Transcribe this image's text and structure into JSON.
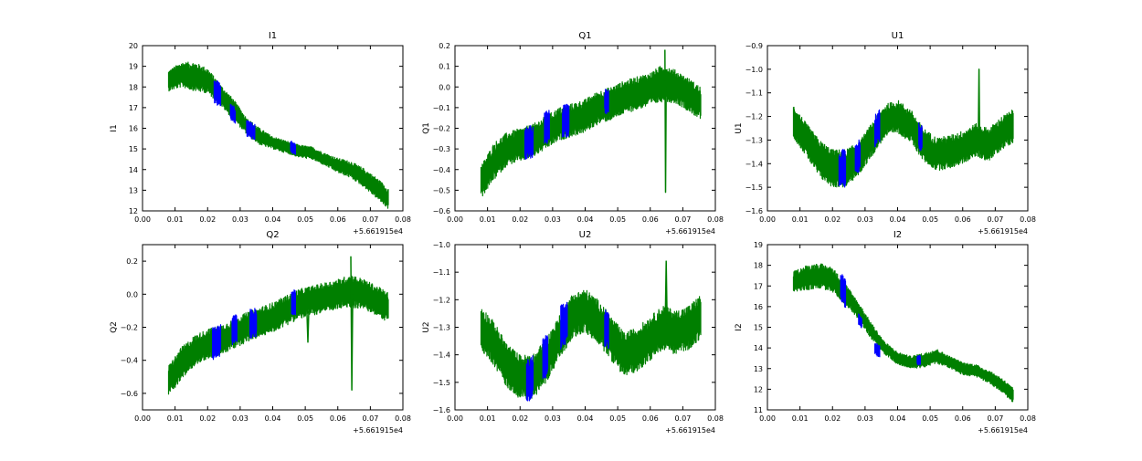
{
  "colors": {
    "green": "#007f00",
    "blue": "#0000ff"
  },
  "chart_data": [
    {
      "type": "line",
      "title": "I1",
      "xlabel": "",
      "ylabel": "I1",
      "xlim": [
        0.0,
        0.08
      ],
      "ylim": [
        12,
        20
      ],
      "xticks": [
        "0.00",
        "0.01",
        "0.02",
        "0.03",
        "0.04",
        "0.05",
        "0.06",
        "0.07",
        "0.08"
      ],
      "yticks": [
        "12",
        "13",
        "14",
        "15",
        "16",
        "17",
        "18",
        "19",
        "20"
      ],
      "x_offset_label": "+5.661915e4",
      "series": [
        {
          "color": "green",
          "x": [
            0.008,
            0.012,
            0.016,
            0.02,
            0.024,
            0.028,
            0.032,
            0.036,
            0.04,
            0.044,
            0.048,
            0.052,
            0.056,
            0.06,
            0.064,
            0.068,
            0.072,
            0.0755
          ],
          "y": [
            18.3,
            18.6,
            18.5,
            18.3,
            17.6,
            16.9,
            16.1,
            15.6,
            15.3,
            15.1,
            14.9,
            14.8,
            14.5,
            14.2,
            14.0,
            13.6,
            13.1,
            12.6
          ],
          "band": [
            0.5,
            0.6,
            0.7,
            0.6,
            0.5,
            0.5,
            0.4,
            0.4,
            0.3,
            0.3,
            0.3,
            0.3,
            0.3,
            0.35,
            0.4,
            0.45,
            0.5,
            0.5
          ]
        },
        {
          "color": "blue",
          "segments": [
            {
              "x": [
                0.022,
                0.024
              ],
              "y": [
                17.8,
                17.6
              ],
              "band": 0.6
            },
            {
              "x": [
                0.027,
                0.0285
              ],
              "y": [
                16.8,
                16.6
              ],
              "band": 0.4
            },
            {
              "x": [
                0.032,
                0.0345
              ],
              "y": [
                16.0,
                15.8
              ],
              "band": 0.4
            },
            {
              "x": [
                0.0455,
                0.047
              ],
              "y": [
                15.1,
                15.0
              ],
              "band": 0.3
            }
          ]
        }
      ]
    },
    {
      "type": "line",
      "title": "Q1",
      "xlabel": "",
      "ylabel": "Q1",
      "xlim": [
        0.0,
        0.08
      ],
      "ylim": [
        -0.6,
        0.2
      ],
      "xticks": [
        "0.00",
        "0.01",
        "0.02",
        "0.03",
        "0.04",
        "0.05",
        "0.06",
        "0.07",
        "0.08"
      ],
      "yticks": [
        "−0.6",
        "−0.5",
        "−0.4",
        "−0.3",
        "−0.2",
        "−0.1",
        "0.0",
        "0.1",
        "0.2"
      ],
      "x_offset_label": "+5.661915e4",
      "series": [
        {
          "color": "green",
          "x": [
            0.008,
            0.012,
            0.016,
            0.02,
            0.024,
            0.028,
            0.032,
            0.036,
            0.04,
            0.044,
            0.048,
            0.052,
            0.056,
            0.06,
            0.064,
            0.068,
            0.072,
            0.0755
          ],
          "y": [
            -0.46,
            -0.36,
            -0.3,
            -0.28,
            -0.26,
            -0.22,
            -0.18,
            -0.16,
            -0.14,
            -0.1,
            -0.08,
            -0.05,
            -0.03,
            -0.01,
            0.02,
            0.0,
            -0.04,
            -0.08
          ],
          "band": [
            0.08,
            0.09,
            0.08,
            0.08,
            0.08,
            0.08,
            0.08,
            0.08,
            0.08,
            0.08,
            0.08,
            0.08,
            0.08,
            0.08,
            0.09,
            0.08,
            0.08,
            0.08
          ]
        },
        {
          "color": "blue",
          "segments": [
            {
              "x": [
                0.0215,
                0.024
              ],
              "y": [
                -0.28,
                -0.26
              ],
              "band": 0.08
            },
            {
              "x": [
                0.0275,
                0.029
              ],
              "y": [
                -0.2,
                -0.19
              ],
              "band": 0.08
            },
            {
              "x": [
                0.033,
                0.035
              ],
              "y": [
                -0.17,
                -0.16
              ],
              "band": 0.08
            },
            {
              "x": [
                0.046,
                0.0472
              ],
              "y": [
                -0.07,
                -0.07
              ],
              "band": 0.06
            }
          ]
        },
        {
          "color": "green",
          "spike": true,
          "x": [
            0.0645,
            0.0647,
            0.0649
          ],
          "y": [
            0.18,
            -0.51,
            0.0
          ]
        }
      ]
    },
    {
      "type": "line",
      "title": "U1",
      "xlabel": "",
      "ylabel": "U1",
      "xlim": [
        0.0,
        0.08
      ],
      "ylim": [
        -1.6,
        -0.9
      ],
      "xticks": [
        "0.00",
        "0.01",
        "0.02",
        "0.03",
        "0.04",
        "0.05",
        "0.06",
        "0.07",
        "0.08"
      ],
      "yticks": [
        "−1.6",
        "−1.5",
        "−1.4",
        "−1.3",
        "−1.2",
        "−1.1",
        "−1.0",
        "−0.9"
      ],
      "x_offset_label": "+5.661915e4",
      "series": [
        {
          "color": "green",
          "x": [
            0.008,
            0.012,
            0.016,
            0.02,
            0.024,
            0.028,
            0.032,
            0.036,
            0.04,
            0.044,
            0.048,
            0.052,
            0.056,
            0.06,
            0.064,
            0.068,
            0.072,
            0.0755
          ],
          "y": [
            -1.22,
            -1.3,
            -1.38,
            -1.42,
            -1.42,
            -1.38,
            -1.3,
            -1.22,
            -1.2,
            -1.24,
            -1.32,
            -1.36,
            -1.35,
            -1.33,
            -1.3,
            -1.32,
            -1.27,
            -1.24
          ],
          "band": [
            0.07,
            0.07,
            0.08,
            0.08,
            0.08,
            0.07,
            0.07,
            0.07,
            0.07,
            0.07,
            0.07,
            0.07,
            0.07,
            0.07,
            0.07,
            0.07,
            0.07,
            0.07
          ]
        },
        {
          "color": "blue",
          "segments": [
            {
              "x": [
                0.022,
                0.024
              ],
              "y": [
                -1.42,
                -1.42
              ],
              "band": 0.08
            },
            {
              "x": [
                0.027,
                0.0285
              ],
              "y": [
                -1.38,
                -1.36
              ],
              "band": 0.07
            },
            {
              "x": [
                0.033,
                0.0345
              ],
              "y": [
                -1.26,
                -1.24
              ],
              "band": 0.07
            },
            {
              "x": [
                0.0465,
                0.0475
              ],
              "y": [
                -1.28,
                -1.3
              ],
              "band": 0.06
            }
          ]
        },
        {
          "color": "green",
          "spike": true,
          "x": [
            0.0648,
            0.065,
            0.0652
          ],
          "y": [
            -1.3,
            -1.0,
            -1.3
          ]
        }
      ]
    },
    {
      "type": "line",
      "title": "Q2",
      "xlabel": "",
      "ylabel": "Q2",
      "xlim": [
        0.0,
        0.08
      ],
      "ylim": [
        -0.7,
        0.3
      ],
      "xticks": [
        "0.00",
        "0.01",
        "0.02",
        "0.03",
        "0.04",
        "0.05",
        "0.06",
        "0.07",
        "0.08"
      ],
      "yticks": [
        "−0.6",
        "−0.4",
        "−0.2",
        "0.0",
        "0.2"
      ],
      "ytick_values": [
        -0.6,
        -0.4,
        -0.2,
        0.0,
        0.2
      ],
      "x_offset_label": "+5.661915e4",
      "series": [
        {
          "color": "green",
          "x": [
            0.008,
            0.012,
            0.016,
            0.02,
            0.024,
            0.028,
            0.032,
            0.036,
            0.04,
            0.044,
            0.048,
            0.052,
            0.056,
            0.06,
            0.064,
            0.068,
            0.072,
            0.0755
          ],
          "y": [
            -0.52,
            -0.42,
            -0.34,
            -0.3,
            -0.28,
            -0.24,
            -0.2,
            -0.17,
            -0.14,
            -0.1,
            -0.06,
            -0.04,
            -0.02,
            0.0,
            0.02,
            0.0,
            -0.04,
            -0.08
          ],
          "band": [
            0.09,
            0.1,
            0.09,
            0.09,
            0.09,
            0.09,
            0.09,
            0.09,
            0.09,
            0.09,
            0.09,
            0.09,
            0.09,
            0.09,
            0.1,
            0.09,
            0.09,
            0.09
          ]
        },
        {
          "color": "blue",
          "segments": [
            {
              "x": [
                0.0215,
                0.024
              ],
              "y": [
                -0.3,
                -0.28
              ],
              "band": 0.1
            },
            {
              "x": [
                0.0275,
                0.029
              ],
              "y": [
                -0.22,
                -0.21
              ],
              "band": 0.09
            },
            {
              "x": [
                0.033,
                0.035
              ],
              "y": [
                -0.18,
                -0.17
              ],
              "band": 0.09
            },
            {
              "x": [
                0.0458,
                0.047
              ],
              "y": [
                -0.05,
                -0.05
              ],
              "band": 0.08
            }
          ]
        },
        {
          "color": "green",
          "spike": true,
          "x": [
            0.064,
            0.0643,
            0.0646
          ],
          "y": [
            0.23,
            -0.58,
            0.0
          ]
        },
        {
          "color": "green",
          "spike": true,
          "x": [
            0.0505,
            0.0508,
            0.0511
          ],
          "y": [
            -0.1,
            -0.29,
            -0.1
          ]
        }
      ]
    },
    {
      "type": "line",
      "title": "U2",
      "xlabel": "",
      "ylabel": "U2",
      "xlim": [
        0.0,
        0.08
      ],
      "ylim": [
        -1.6,
        -1.0
      ],
      "xticks": [
        "0.00",
        "0.01",
        "0.02",
        "0.03",
        "0.04",
        "0.05",
        "0.06",
        "0.07",
        "0.08"
      ],
      "yticks": [
        "−1.6",
        "−1.5",
        "−1.4",
        "−1.3",
        "−1.2",
        "−1.1",
        "−1.0"
      ],
      "x_offset_label": "+5.661915e4",
      "series": [
        {
          "color": "green",
          "x": [
            0.008,
            0.012,
            0.016,
            0.02,
            0.024,
            0.028,
            0.032,
            0.036,
            0.04,
            0.044,
            0.048,
            0.052,
            0.056,
            0.06,
            0.064,
            0.068,
            0.072,
            0.0755
          ],
          "y": [
            -1.3,
            -1.36,
            -1.44,
            -1.48,
            -1.48,
            -1.42,
            -1.34,
            -1.26,
            -1.24,
            -1.28,
            -1.34,
            -1.4,
            -1.38,
            -1.34,
            -1.3,
            -1.32,
            -1.3,
            -1.26
          ],
          "band": [
            0.08,
            0.08,
            0.08,
            0.08,
            0.08,
            0.08,
            0.08,
            0.08,
            0.08,
            0.08,
            0.08,
            0.08,
            0.08,
            0.08,
            0.08,
            0.08,
            0.08,
            0.08
          ]
        },
        {
          "color": "blue",
          "segments": [
            {
              "x": [
                0.022,
                0.024
              ],
              "y": [
                -1.5,
                -1.48
              ],
              "band": 0.08
            },
            {
              "x": [
                0.027,
                0.0285
              ],
              "y": [
                -1.42,
                -1.4
              ],
              "band": 0.08
            },
            {
              "x": [
                0.0325,
                0.0345
              ],
              "y": [
                -1.3,
                -1.28
              ],
              "band": 0.08
            },
            {
              "x": [
                0.046,
                0.0472
              ],
              "y": [
                -1.3,
                -1.32
              ],
              "band": 0.07
            }
          ]
        },
        {
          "color": "green",
          "spike": true,
          "x": [
            0.0646,
            0.0649,
            0.0652
          ],
          "y": [
            -1.3,
            -1.06,
            -1.3
          ]
        }
      ]
    },
    {
      "type": "line",
      "title": "I2",
      "xlabel": "",
      "ylabel": "I2",
      "xlim": [
        0.0,
        0.08
      ],
      "ylim": [
        11,
        19
      ],
      "xticks": [
        "0.00",
        "0.01",
        "0.02",
        "0.03",
        "0.04",
        "0.05",
        "0.06",
        "0.07",
        "0.08"
      ],
      "yticks": [
        "11",
        "12",
        "13",
        "14",
        "15",
        "16",
        "17",
        "18",
        "19"
      ],
      "x_offset_label": "+5.661915e4",
      "series": [
        {
          "color": "green",
          "x": [
            0.008,
            0.012,
            0.016,
            0.02,
            0.024,
            0.028,
            0.032,
            0.036,
            0.04,
            0.044,
            0.048,
            0.052,
            0.056,
            0.06,
            0.064,
            0.068,
            0.072,
            0.0755
          ],
          "y": [
            17.2,
            17.4,
            17.5,
            17.3,
            16.6,
            15.8,
            14.8,
            14.0,
            13.5,
            13.3,
            13.4,
            13.6,
            13.3,
            13.0,
            12.9,
            12.6,
            12.2,
            11.7
          ],
          "band": [
            0.5,
            0.6,
            0.6,
            0.6,
            0.5,
            0.4,
            0.4,
            0.3,
            0.3,
            0.3,
            0.35,
            0.35,
            0.3,
            0.3,
            0.3,
            0.3,
            0.35,
            0.35
          ]
        },
        {
          "color": "blue",
          "segments": [
            {
              "x": [
                0.0225,
                0.024
              ],
              "y": [
                17.0,
                16.6
              ],
              "band": 0.7
            },
            {
              "x": [
                0.028,
                0.029
              ],
              "y": [
                15.4,
                15.2
              ],
              "band": 0.3
            },
            {
              "x": [
                0.033,
                0.0345
              ],
              "y": [
                14.0,
                13.8
              ],
              "band": 0.3
            },
            {
              "x": [
                0.046,
                0.047
              ],
              "y": [
                13.4,
                13.4
              ],
              "band": 0.25
            }
          ]
        }
      ]
    }
  ]
}
